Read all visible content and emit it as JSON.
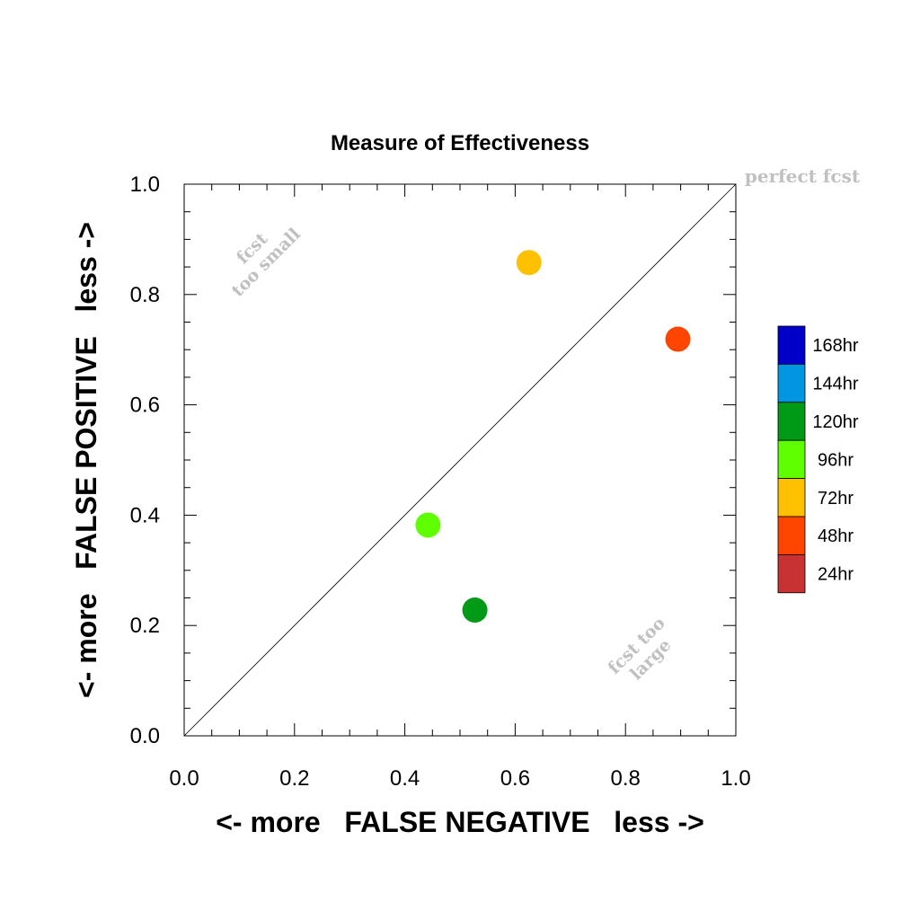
{
  "chart_data": {
    "type": "scatter",
    "title": "Measure of Effectiveness",
    "xlabel": "<- more   FALSE NEGATIVE   less ->",
    "ylabel": "<- more   FALSE POSITIVE   less ->",
    "xlim": [
      0,
      1
    ],
    "ylim": [
      0,
      1
    ],
    "xticks": [
      "0.0",
      "0.2",
      "0.4",
      "0.6",
      "0.8",
      "1.0"
    ],
    "yticks": [
      "0.0",
      "0.2",
      "0.4",
      "0.6",
      "0.8",
      "1.0"
    ],
    "diagonal_line": true,
    "annotations": {
      "perfect": "perfect fcst",
      "too_small_line1": "fcst",
      "too_small_line2": "too small",
      "too_large_line1": "fcst too",
      "too_large_line2": "large"
    },
    "points": [
      {
        "label": "72hr",
        "x": 0.625,
        "y": 0.858,
        "color": "#ffc000"
      },
      {
        "label": "48hr",
        "x": 0.895,
        "y": 0.719,
        "color": "#ff4500"
      },
      {
        "label": "96hr",
        "x": 0.442,
        "y": 0.382,
        "color": "#60ff00"
      },
      {
        "label": "120hr",
        "x": 0.527,
        "y": 0.228,
        "color": "#009a17"
      }
    ],
    "legend": {
      "placement": "right",
      "entries": [
        {
          "label": "168hr",
          "color": "#0000c8"
        },
        {
          "label": "144hr",
          "color": "#0096e1"
        },
        {
          "label": "120hr",
          "color": "#009a17"
        },
        {
          "label": "96hr",
          "color": "#60ff00"
        },
        {
          "label": "72hr",
          "color": "#ffc000"
        },
        {
          "label": "48hr",
          "color": "#ff4500"
        },
        {
          "label": "24hr",
          "color": "#c83232"
        }
      ]
    }
  }
}
